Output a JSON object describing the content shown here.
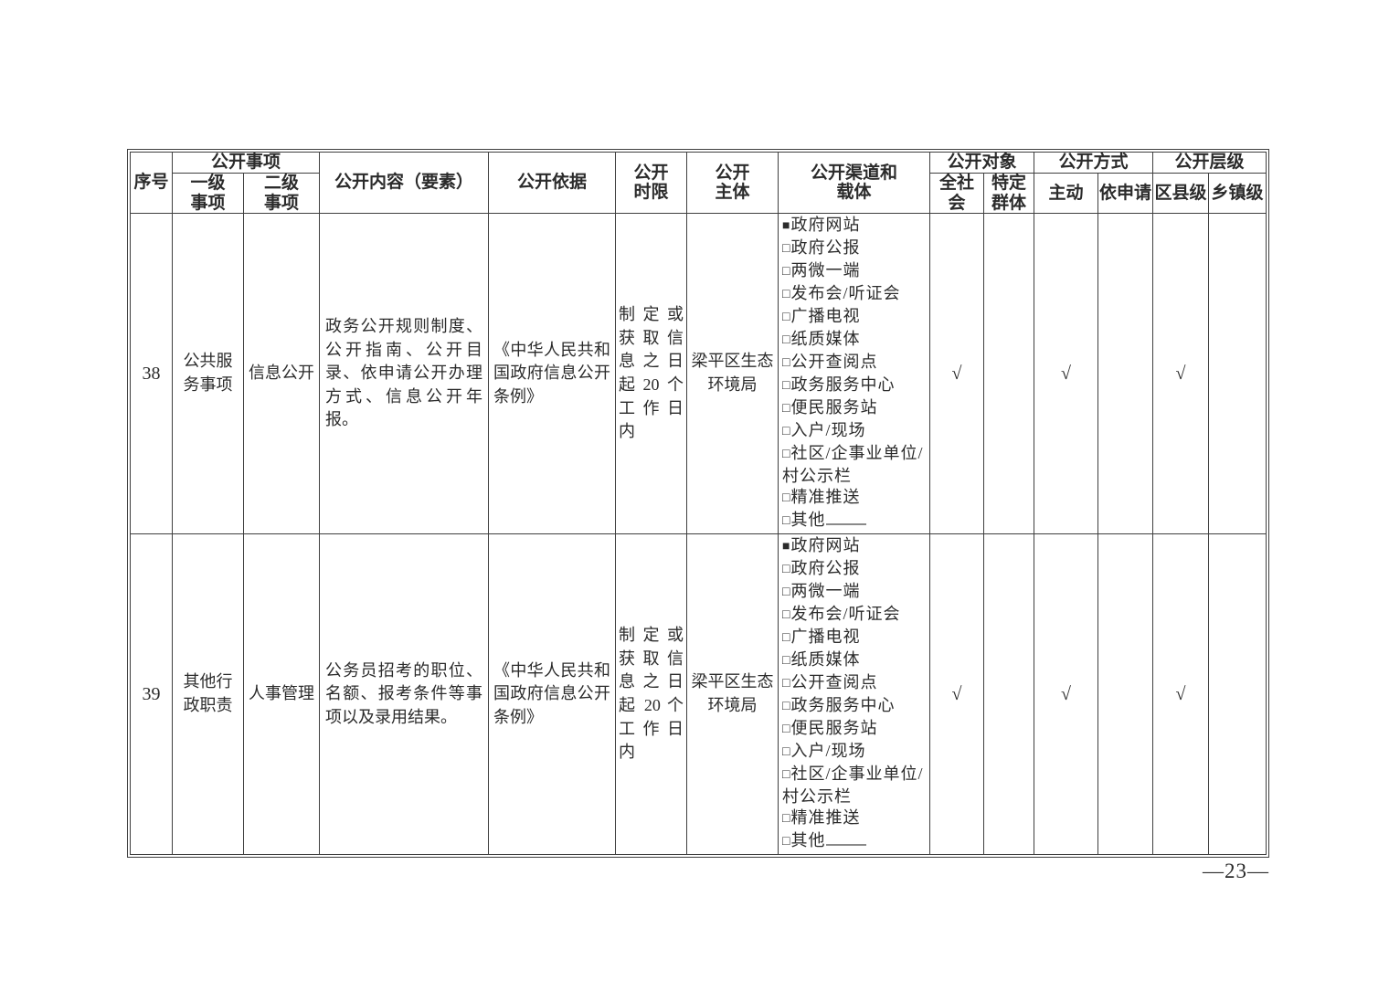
{
  "page": {
    "number": "—23—"
  },
  "colors": {
    "ink": "#2b2b2b",
    "border": "#3f3f3f"
  },
  "table": {
    "header": {
      "seq": "序号",
      "items_group": "公开事项",
      "level1": "一级\n事项",
      "level2": "二级\n事项",
      "content": "公开内容（要素）",
      "basis": "公开依据",
      "time": "公开\n时限",
      "subject": "公开\n主体",
      "channel": "公开渠道和\n载体",
      "target_group": "公开对象",
      "target_all": "全社会",
      "target_specific": "特定\n群体",
      "method_group": "公开方式",
      "method_active": "主动",
      "method_request": "依申请",
      "level_group": "公开层级",
      "level_district": "区县级",
      "level_town": "乡镇级"
    },
    "rows": [
      {
        "seq": "38",
        "level1": "公共服务事项",
        "level2": "信息公开",
        "content": "政务公开规则制度、公开指南、公开目录、依申请公开办理方式、信息公开年报。",
        "basis": "《中华人民共和国政府信息公开条例》",
        "time": "制定或获取信息之日起20个工作日内",
        "subject": "梁平区生态环境局",
        "channels": [
          {
            "checked": true,
            "label": "政府网站"
          },
          {
            "checked": false,
            "label": "政府公报"
          },
          {
            "checked": false,
            "label": "两微一端"
          },
          {
            "checked": false,
            "label": "发布会/听证会"
          },
          {
            "checked": false,
            "label": "广播电视"
          },
          {
            "checked": false,
            "label": "纸质媒体"
          },
          {
            "checked": false,
            "label": "公开查阅点"
          },
          {
            "checked": false,
            "label": "政务服务中心"
          },
          {
            "checked": false,
            "label": "便民服务站"
          },
          {
            "checked": false,
            "label": "入户/现场"
          },
          {
            "checked": false,
            "label": "社区/企事业单位/村公示栏"
          },
          {
            "checked": false,
            "label": "精准推送"
          },
          {
            "checked": false,
            "label": "其他",
            "blank": true
          }
        ],
        "checks": {
          "target_all": "√",
          "target_specific": "",
          "method_active": "√",
          "method_request": "",
          "level_district": "√",
          "level_town": ""
        }
      },
      {
        "seq": "39",
        "level1": "其他行政职责",
        "level2": "人事管理",
        "content": "公务员招考的职位、名额、报考条件等事项以及录用结果。",
        "basis": "《中华人民共和国政府信息公开条例》",
        "time": "制定或获取信息之日起 20 个工作日内",
        "subject": "梁平区生态环境局",
        "channels": [
          {
            "checked": true,
            "label": "政府网站"
          },
          {
            "checked": false,
            "label": "政府公报"
          },
          {
            "checked": false,
            "label": "两微一端"
          },
          {
            "checked": false,
            "label": "发布会/听证会"
          },
          {
            "checked": false,
            "label": "广播电视"
          },
          {
            "checked": false,
            "label": "纸质媒体"
          },
          {
            "checked": false,
            "label": "公开查阅点"
          },
          {
            "checked": false,
            "label": "政务服务中心"
          },
          {
            "checked": false,
            "label": "便民服务站"
          },
          {
            "checked": false,
            "label": "入户/现场"
          },
          {
            "checked": false,
            "label": "社区/企事业单位/村公示栏"
          },
          {
            "checked": false,
            "label": "精准推送"
          },
          {
            "checked": false,
            "label": "其他",
            "blank": true
          }
        ],
        "checks": {
          "target_all": "√",
          "target_specific": "",
          "method_active": "√",
          "method_request": "",
          "level_district": "√",
          "level_town": ""
        }
      }
    ]
  }
}
